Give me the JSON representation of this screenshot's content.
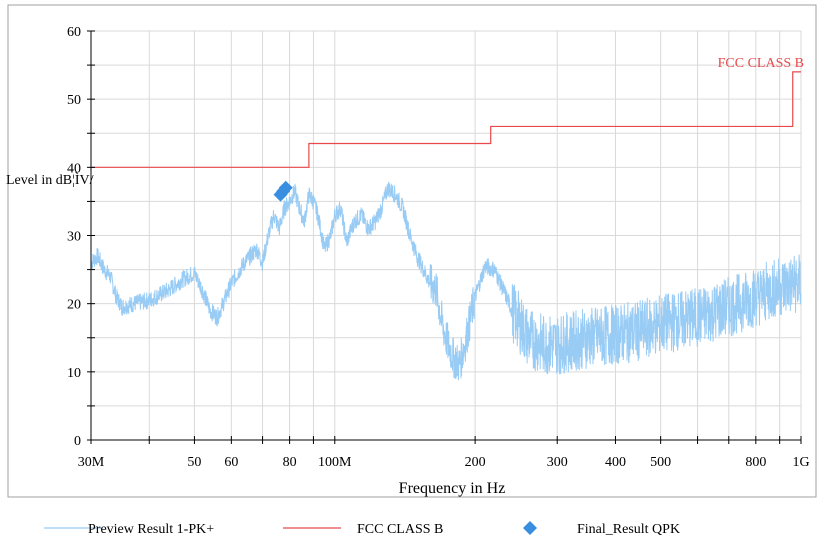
{
  "chart_data": {
    "type": "line",
    "xlabel": "Frequency in Hz",
    "ylabel": "Level in dBµV",
    "ylabel_display": "Level in dB¦ÌV/",
    "x_scale": "log",
    "xlim": [
      30000000,
      1000000000
    ],
    "ylim": [
      0,
      60
    ],
    "grid": true,
    "x_tick_values": [
      30000000,
      50000000,
      60000000,
      80000000,
      100000000,
      200000000,
      300000000,
      400000000,
      500000000,
      800000000,
      1000000000
    ],
    "x_tick_labels": [
      "30M",
      "50",
      "60",
      "80",
      "100M",
      "200",
      "300",
      "400",
      "500",
      "800",
      "1G"
    ],
    "y_tick_values": [
      0,
      10,
      20,
      30,
      40,
      50,
      60
    ],
    "y_tick_labels": [
      "0",
      "10",
      "20",
      "30",
      "40",
      "50",
      "60"
    ],
    "limit_label": "FCC CLASS B",
    "colors": {
      "preview": "#99ccf5",
      "limit": "#e8494b",
      "final": "#3a8ee0",
      "grid": "#d9d9d9",
      "frame": "#a0a0a0"
    },
    "series": [
      {
        "name": "Preview Result 1-PK+",
        "kind": "noisy-line",
        "x": [
          30000000,
          31000000,
          32000000,
          33000000,
          34000000,
          35000000,
          37000000,
          40000000,
          44000000,
          47000000,
          50000000,
          52000000,
          54000000,
          56000000,
          60000000,
          64000000,
          68000000,
          70000000,
          72000000,
          74000000,
          76000000,
          78000000,
          80000000,
          82000000,
          84000000,
          86000000,
          88000000,
          90000000,
          92000000,
          95000000,
          98000000,
          100000000,
          103000000,
          106000000,
          110000000,
          114000000,
          118000000,
          122000000,
          126000000,
          130000000,
          135000000,
          140000000,
          145000000,
          150000000,
          155000000,
          160000000,
          165000000,
          170000000,
          175000000,
          180000000,
          185000000,
          190000000,
          200000000,
          210000000,
          220000000,
          230000000,
          240000000,
          250000000,
          260000000,
          280000000,
          300000000,
          350000000,
          400000000,
          450000000,
          500000000,
          600000000,
          700000000,
          800000000,
          900000000,
          1000000000
        ],
        "y": [
          26,
          27,
          25,
          24,
          21,
          19.5,
          20,
          20.5,
          22,
          23.5,
          24.5,
          22,
          19,
          18,
          23,
          26,
          28,
          26,
          30,
          33,
          31,
          34,
          35,
          36.5,
          34,
          32,
          36,
          35,
          33,
          28,
          30,
          33,
          34,
          29,
          32,
          33,
          31,
          32,
          34,
          37,
          36,
          34,
          30,
          27,
          25,
          23,
          22,
          17,
          14,
          12,
          11,
          14,
          21,
          25.5,
          25,
          22,
          19,
          17,
          15,
          14,
          14,
          15,
          15.5,
          16,
          17,
          18,
          19.5,
          21,
          22.5,
          23
        ]
      },
      {
        "name": "FCC CLASS B",
        "kind": "step",
        "steps": [
          {
            "x": [
              30000000,
              88000000
            ],
            "y": 40
          },
          {
            "x": [
              88000000,
              216000000
            ],
            "y": 43.5
          },
          {
            "x": [
              216000000,
              960000000
            ],
            "y": 46
          },
          {
            "x": [
              960000000,
              1000000000
            ],
            "y": 54
          }
        ]
      },
      {
        "name": "Final_Result QPK",
        "kind": "markers",
        "x": [
          76500000,
          77500000,
          78500000
        ],
        "y": [
          36,
          36.5,
          37
        ]
      }
    ]
  },
  "legend": [
    {
      "label": "Preview Result 1-PK+",
      "symbol": "line",
      "color": "#99ccf5"
    },
    {
      "label": "FCC CLASS B",
      "symbol": "line",
      "color": "#e8494b"
    },
    {
      "label": "Final_Result QPK",
      "symbol": "diamond",
      "color": "#3a8ee0"
    }
  ]
}
